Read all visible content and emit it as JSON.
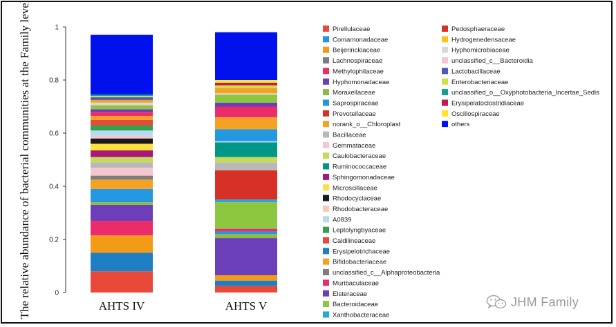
{
  "watermark": {
    "text": "JHM Family",
    "icon": "wechat-icon"
  },
  "chart_data": {
    "type": "bar",
    "stacked": true,
    "ylabel": "The relative abundance of bacterial communities at the Family level",
    "xlabel": "",
    "ylim": [
      0,
      1
    ],
    "yticks": [
      0,
      0.2,
      0.4,
      0.6,
      0.8,
      1
    ],
    "categories": [
      "AHTS IV",
      "AHTS V"
    ],
    "grid": false,
    "legend_position": "right",
    "series": [
      {
        "name": "Xanthobacteraceae",
        "color": "#e9493a",
        "values": [
          0.08,
          0.025
        ]
      },
      {
        "name": "Bacteroidaceae",
        "color": "#1f7fc4",
        "values": [
          0.07,
          0.02
        ]
      },
      {
        "name": "Elsteraceae",
        "color": "#f39a17",
        "values": [
          0.065,
          0.02
        ]
      },
      {
        "name": "Muribaculaceae",
        "color": "#ea2d6a",
        "values": [
          0.055,
          0.0
        ]
      },
      {
        "name": "unclassified_c__Alphaproteobacteria",
        "color": "#6c3fb8",
        "values": [
          0.06,
          0.14
        ]
      },
      {
        "name": "Bifidobacteriaceae",
        "color": "#8dbb45",
        "values": [
          0.01,
          0.015
        ]
      },
      {
        "name": "Erysipelotrichaceae",
        "color": "#2397e0",
        "values": [
          0.05,
          0.01
        ]
      },
      {
        "name": "Caldilineaceae",
        "color": "#f5a123",
        "values": [
          0.035,
          0.0
        ]
      },
      {
        "name": "Leptolyngbyaceae",
        "color": "#7d7d7d",
        "values": [
          0.015,
          0.0
        ]
      },
      {
        "name": "A0839",
        "color": "#ea2d6a",
        "values": [
          0.0,
          0.01
        ]
      },
      {
        "name": "Rhodobacteraceae",
        "color": "#6c3fb8",
        "values": [
          0.0,
          0.0
        ]
      },
      {
        "name": "Rhodocyclaceae",
        "color": "#8dc63f",
        "values": [
          0.0,
          0.1
        ]
      },
      {
        "name": "Microscillaceae",
        "color": "#25a6e0",
        "values": [
          0.0,
          0.01
        ]
      },
      {
        "name": "Sphingomonadaceae",
        "color": "#d73027",
        "values": [
          0.0,
          0.11
        ]
      },
      {
        "name": "Ruminococcaceae",
        "color": "#f6c6cf",
        "values": [
          0.03,
          0.0
        ]
      },
      {
        "name": "Caulobacteraceae",
        "color": "#b8b8b8",
        "values": [
          0.02,
          0.03
        ]
      },
      {
        "name": "Gemmataceae",
        "color": "#c5da58",
        "values": [
          0.02,
          0.02
        ]
      },
      {
        "name": "Bacillaceae",
        "color": "#a6197a",
        "values": [
          0.025,
          0.0
        ]
      },
      {
        "name": "norank_o__Chloroplast",
        "color": "#fbe13b",
        "values": [
          0.025,
          0.0
        ]
      },
      {
        "name": "Prevotellaceae",
        "color": "#1a1a1a",
        "values": [
          0.02,
          0.0
        ]
      },
      {
        "name": "Saprospiraceae",
        "color": "#f6c6cf",
        "values": [
          0.01,
          0.0
        ]
      },
      {
        "name": "Moraxellaceae",
        "color": "#009688",
        "values": [
          0.0,
          0.055
        ]
      },
      {
        "name": "Hyphomonadaceae",
        "color": "#b5dbf0",
        "values": [
          0.02,
          0.005
        ]
      },
      {
        "name": "Methylophilaceae",
        "color": "#34a04a",
        "values": [
          0.02,
          0.0
        ]
      },
      {
        "name": "Lachnospiraceae",
        "color": "#e9493a",
        "values": [
          0.02,
          0.0
        ]
      },
      {
        "name": "Beijerinckiaceae",
        "color": "#2397e0",
        "values": [
          0.0,
          0.045
        ]
      },
      {
        "name": "Comamonadaceae",
        "color": "#f5a123",
        "values": [
          0.015,
          0.045
        ]
      },
      {
        "name": "Pirellulaceae",
        "color": "#ea2d6a",
        "values": [
          0.015,
          0.04
        ]
      },
      {
        "name": "Pedosphaeraceae",
        "color": "#6c3fb8",
        "values": [
          0.01,
          0.015
        ]
      },
      {
        "name": "Hydrogenedensaceae",
        "color": "#8dc63f",
        "values": [
          0.015,
          0.03
        ]
      },
      {
        "name": "Hyphomicrobiaceae",
        "color": "#d8d8d8",
        "values": [
          0.01,
          0.005
        ]
      },
      {
        "name": "unclassified_c__Bacteroidia",
        "color": "#f5a123",
        "values": [
          0.01,
          0.02
        ]
      },
      {
        "name": "Lactobacillaceae",
        "color": "#4a5ab8",
        "values": [
          0.01,
          0.0
        ]
      },
      {
        "name": "Enterobacteriaceae",
        "color": "#cfe04a",
        "values": [
          0.005,
          0.01
        ]
      },
      {
        "name": "unclassified_o__Oxyphotobacteria_Incertae_Sedis",
        "color": "#13a08a",
        "values": [
          0.005,
          0.0
        ]
      },
      {
        "name": "Erysipelatoclostridiaceae",
        "color": "#c4185a",
        "values": [
          0.0,
          0.01
        ]
      },
      {
        "name": "Oscillospiraceae",
        "color": "#fde725",
        "values": [
          0.0,
          0.01
        ]
      },
      {
        "name": "others",
        "color": "#0011ee",
        "values": [
          0.225,
          0.18
        ]
      }
    ],
    "legend": {
      "column1": [
        {
          "name": "Pirellulaceae",
          "color": "#e9493a"
        },
        {
          "name": "Comamonadaceae",
          "color": "#2397e0"
        },
        {
          "name": "Beijerinckiaceae",
          "color": "#f39a17"
        },
        {
          "name": "Lachnospiraceae",
          "color": "#7d7d7d"
        },
        {
          "name": "Methylophilaceae",
          "color": "#ea2d6a"
        },
        {
          "name": "Hyphomonadaceae",
          "color": "#6c3fb8"
        },
        {
          "name": "Moraxellaceae",
          "color": "#8dbb45"
        },
        {
          "name": "Saprospiraceae",
          "color": "#2397e0"
        },
        {
          "name": "Prevotellaceae",
          "color": "#d73027"
        },
        {
          "name": "norank_o__Chloroplast",
          "color": "#f5a123"
        },
        {
          "name": "Bacillaceae",
          "color": "#b8b8b8"
        },
        {
          "name": "Gemmataceae",
          "color": "#f6c6cf"
        },
        {
          "name": "Caulobacteraceae",
          "color": "#c5da58"
        },
        {
          "name": "Ruminococcaceae",
          "color": "#009688"
        },
        {
          "name": "Sphingomonadaceae",
          "color": "#a6197a"
        },
        {
          "name": "Microscillaceae",
          "color": "#fbe13b"
        },
        {
          "name": "Rhodocyclaceae",
          "color": "#1a1a1a"
        },
        {
          "name": "Rhodobacteraceae",
          "color": "#f9c9b8"
        },
        {
          "name": "A0839",
          "color": "#b5dbf0"
        },
        {
          "name": "Leptolyngbyaceae",
          "color": "#34a04a"
        },
        {
          "name": "Caldilineaceae",
          "color": "#e9493a"
        },
        {
          "name": "Erysipelotrichaceae",
          "color": "#1f7fc4"
        },
        {
          "name": "Bifidobacteriaceae",
          "color": "#f5a123"
        },
        {
          "name": "unclassified_c__Alphaproteobacteria",
          "color": "#7d7d7d"
        },
        {
          "name": "Muribaculaceae",
          "color": "#ea2d6a"
        },
        {
          "name": "Elsteraceae",
          "color": "#6c3fb8"
        },
        {
          "name": "Bacteroidaceae",
          "color": "#8dc63f"
        },
        {
          "name": "Xanthobacteraceae",
          "color": "#25a6e0"
        }
      ],
      "column2": [
        {
          "name": "Pedosphaeraceae",
          "color": "#d73027"
        },
        {
          "name": "Hydrogenedensaceae",
          "color": "#f5c518"
        },
        {
          "name": "Hyphomicrobiaceae",
          "color": "#d8d8d8"
        },
        {
          "name": "unclassified_c__Bacteroidia",
          "color": "#f6c6cf"
        },
        {
          "name": "Lactobacillaceae",
          "color": "#4a5ab8"
        },
        {
          "name": "Enterobacteriaceae",
          "color": "#cfe04a"
        },
        {
          "name": "unclassified_o__Oxyphotobacteria_Incertae_Sedis",
          "color": "#13a08a"
        },
        {
          "name": "Erysipelatoclostridiaceae",
          "color": "#c4185a"
        },
        {
          "name": "Oscillospiraceae",
          "color": "#fde725"
        },
        {
          "name": "others",
          "color": "#0011ee"
        }
      ]
    }
  }
}
